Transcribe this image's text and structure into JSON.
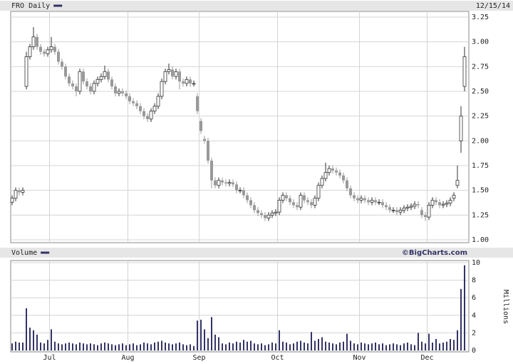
{
  "chart_data": [
    {
      "type": "candlestick",
      "title": "FRO Daily",
      "date": "12/15/14",
      "color": "#333366",
      "up_color": "#ffffff",
      "down_color": "#999999",
      "grid": true,
      "ylim": [
        1,
        3.25
      ],
      "yticks": [
        {
          "value": 1,
          "label": "1.00"
        },
        1.25,
        {
          "value": 1.5,
          "label": "1.50"
        },
        1.75,
        {
          "value": 2,
          "label": "2.00"
        },
        2.25,
        {
          "value": 2.5,
          "label": "2.50"
        },
        2.75,
        {
          "value": 3,
          "label": "3.00"
        },
        3.25
      ],
      "ohlc": [
        [
          1.38,
          1.45,
          1.35,
          1.42
        ],
        [
          1.42,
          1.53,
          1.39,
          1.5
        ],
        [
          1.5,
          1.53,
          1.45,
          1.48
        ],
        [
          1.48,
          1.53,
          1.45,
          1.5
        ],
        [
          2.55,
          2.9,
          2.52,
          2.85
        ],
        [
          2.85,
          2.98,
          2.82,
          2.95
        ],
        [
          2.95,
          3.15,
          2.92,
          3.05
        ],
        [
          3.05,
          3.08,
          2.92,
          2.95
        ],
        [
          2.95,
          2.98,
          2.87,
          2.9
        ],
        [
          2.9,
          2.93,
          2.85,
          2.88
        ],
        [
          2.88,
          2.95,
          2.85,
          2.92
        ],
        [
          2.92,
          3.05,
          2.89,
          2.95
        ],
        [
          2.95,
          2.98,
          2.87,
          2.9
        ],
        [
          2.9,
          2.93,
          2.77,
          2.8
        ],
        [
          2.8,
          2.83,
          2.72,
          2.75
        ],
        [
          2.75,
          2.78,
          2.62,
          2.65
        ],
        [
          2.65,
          2.68,
          2.55,
          2.58
        ],
        [
          2.58,
          2.61,
          2.52,
          2.55
        ],
        [
          2.55,
          2.58,
          2.45,
          2.5
        ],
        [
          2.5,
          2.73,
          2.47,
          2.7
        ],
        [
          2.7,
          2.73,
          2.57,
          2.6
        ],
        [
          2.6,
          2.63,
          2.52,
          2.55
        ],
        [
          2.55,
          2.58,
          2.47,
          2.5
        ],
        [
          2.5,
          2.61,
          2.47,
          2.58
        ],
        [
          2.58,
          2.65,
          2.55,
          2.62
        ],
        [
          2.62,
          2.68,
          2.59,
          2.65
        ],
        [
          2.65,
          2.76,
          2.62,
          2.7
        ],
        [
          2.7,
          2.73,
          2.59,
          2.62
        ],
        [
          2.62,
          2.65,
          2.52,
          2.55
        ],
        [
          2.55,
          2.58,
          2.45,
          2.48
        ],
        [
          2.48,
          2.53,
          2.45,
          2.5
        ],
        [
          2.5,
          2.53,
          2.45,
          2.48
        ],
        [
          2.48,
          2.51,
          2.42,
          2.45
        ],
        [
          2.45,
          2.48,
          2.37,
          2.4
        ],
        [
          2.4,
          2.43,
          2.35,
          2.38
        ],
        [
          2.38,
          2.41,
          2.32,
          2.35
        ],
        [
          2.35,
          2.38,
          2.27,
          2.3
        ],
        [
          2.3,
          2.33,
          2.22,
          2.25
        ],
        [
          2.25,
          2.28,
          2.19,
          2.22
        ],
        [
          2.22,
          2.33,
          2.19,
          2.3
        ],
        [
          2.3,
          2.38,
          2.27,
          2.35
        ],
        [
          2.35,
          2.48,
          2.32,
          2.45
        ],
        [
          2.45,
          2.63,
          2.42,
          2.6
        ],
        [
          2.6,
          2.73,
          2.57,
          2.7
        ],
        [
          2.7,
          2.78,
          2.67,
          2.72
        ],
        [
          2.72,
          2.75,
          2.62,
          2.65
        ],
        [
          2.65,
          2.73,
          2.62,
          2.7
        ],
        [
          2.7,
          2.73,
          2.52,
          2.6
        ],
        [
          2.6,
          2.63,
          2.55,
          2.58
        ],
        [
          2.58,
          2.65,
          2.55,
          2.62
        ],
        [
          2.62,
          2.65,
          2.55,
          2.58
        ],
        [
          2.58,
          2.61,
          2.55,
          2.58
        ],
        [
          2.45,
          2.48,
          2.27,
          2.3
        ],
        [
          2.2,
          2.23,
          2.07,
          2.1
        ],
        [
          2.02,
          2.05,
          1.97,
          2.0
        ],
        [
          2.0,
          2.03,
          1.77,
          1.8
        ],
        [
          1.8,
          1.83,
          1.52,
          1.6
        ],
        [
          1.6,
          1.63,
          1.52,
          1.55
        ],
        [
          1.55,
          1.63,
          1.52,
          1.6
        ],
        [
          1.6,
          1.63,
          1.55,
          1.58
        ],
        [
          1.58,
          1.61,
          1.54,
          1.57
        ],
        [
          1.57,
          1.61,
          1.54,
          1.58
        ],
        [
          1.58,
          1.61,
          1.53,
          1.56
        ],
        [
          1.56,
          1.59,
          1.47,
          1.5
        ],
        [
          1.5,
          1.53,
          1.47,
          1.5
        ],
        [
          1.5,
          1.53,
          1.42,
          1.45
        ],
        [
          1.45,
          1.48,
          1.37,
          1.4
        ],
        [
          1.4,
          1.43,
          1.32,
          1.35
        ],
        [
          1.35,
          1.38,
          1.27,
          1.3
        ],
        [
          1.3,
          1.33,
          1.24,
          1.27
        ],
        [
          1.27,
          1.3,
          1.22,
          1.25
        ],
        [
          1.25,
          1.28,
          1.19,
          1.22
        ],
        [
          1.22,
          1.28,
          1.19,
          1.25
        ],
        [
          1.25,
          1.3,
          1.22,
          1.27
        ],
        [
          1.27,
          1.31,
          1.24,
          1.28
        ],
        [
          1.28,
          1.43,
          1.25,
          1.4
        ],
        [
          1.4,
          1.48,
          1.37,
          1.45
        ],
        [
          1.45,
          1.48,
          1.39,
          1.42
        ],
        [
          1.42,
          1.45,
          1.35,
          1.38
        ],
        [
          1.38,
          1.41,
          1.32,
          1.35
        ],
        [
          1.35,
          1.38,
          1.3,
          1.33
        ],
        [
          1.33,
          1.48,
          1.3,
          1.45
        ],
        [
          1.45,
          1.48,
          1.37,
          1.4
        ],
        [
          1.4,
          1.43,
          1.35,
          1.38
        ],
        [
          1.38,
          1.41,
          1.32,
          1.35
        ],
        [
          1.35,
          1.45,
          1.32,
          1.42
        ],
        [
          1.42,
          1.58,
          1.39,
          1.55
        ],
        [
          1.55,
          1.65,
          1.52,
          1.62
        ],
        [
          1.62,
          1.78,
          1.59,
          1.68
        ],
        [
          1.68,
          1.75,
          1.65,
          1.72
        ],
        [
          1.72,
          1.75,
          1.67,
          1.7
        ],
        [
          1.7,
          1.73,
          1.65,
          1.68
        ],
        [
          1.68,
          1.71,
          1.62,
          1.65
        ],
        [
          1.65,
          1.68,
          1.57,
          1.6
        ],
        [
          1.6,
          1.63,
          1.49,
          1.52
        ],
        [
          1.52,
          1.55,
          1.42,
          1.45
        ],
        [
          1.45,
          1.48,
          1.39,
          1.42
        ],
        [
          1.42,
          1.45,
          1.37,
          1.4
        ],
        [
          1.4,
          1.45,
          1.37,
          1.42
        ],
        [
          1.42,
          1.45,
          1.37,
          1.4
        ],
        [
          1.4,
          1.43,
          1.35,
          1.38
        ],
        [
          1.38,
          1.43,
          1.35,
          1.4
        ],
        [
          1.4,
          1.43,
          1.35,
          1.38
        ],
        [
          1.38,
          1.41,
          1.35,
          1.38
        ],
        [
          1.38,
          1.41,
          1.32,
          1.35
        ],
        [
          1.35,
          1.38,
          1.3,
          1.33
        ],
        [
          1.33,
          1.36,
          1.27,
          1.3
        ],
        [
          1.3,
          1.33,
          1.27,
          1.3
        ],
        [
          1.3,
          1.33,
          1.25,
          1.28
        ],
        [
          1.28,
          1.33,
          1.25,
          1.3
        ],
        [
          1.3,
          1.35,
          1.27,
          1.32
        ],
        [
          1.32,
          1.36,
          1.29,
          1.33
        ],
        [
          1.33,
          1.37,
          1.3,
          1.34
        ],
        [
          1.34,
          1.39,
          1.31,
          1.36
        ],
        [
          1.36,
          1.39,
          1.32,
          1.35
        ],
        [
          1.3,
          1.33,
          1.22,
          1.25
        ],
        [
          1.25,
          1.28,
          1.19,
          1.23
        ],
        [
          1.23,
          1.38,
          1.2,
          1.35
        ],
        [
          1.35,
          1.43,
          1.32,
          1.4
        ],
        [
          1.4,
          1.43,
          1.35,
          1.38
        ],
        [
          1.38,
          1.41,
          1.32,
          1.35
        ],
        [
          1.35,
          1.39,
          1.32,
          1.36
        ],
        [
          1.36,
          1.4,
          1.33,
          1.37
        ],
        [
          1.37,
          1.43,
          1.34,
          1.4
        ],
        [
          1.42,
          1.48,
          1.39,
          1.45
        ],
        [
          1.55,
          1.75,
          1.52,
          1.6
        ],
        [
          2.0,
          2.35,
          1.88,
          2.25
        ],
        [
          2.55,
          2.95,
          2.5,
          2.85
        ]
      ]
    },
    {
      "type": "bar",
      "title": "Volume",
      "source": "©BigCharts.com",
      "ylabel": "Millions",
      "color": "#333366",
      "grid": true,
      "ylim": [
        0,
        10
      ],
      "yticks": [
        0,
        2,
        4,
        6,
        8,
        10
      ],
      "categories": [
        null,
        null,
        null,
        null,
        null,
        null,
        null,
        null,
        null,
        null,
        null,
        "Jul",
        null,
        null,
        null,
        null,
        null,
        null,
        null,
        null,
        null,
        null,
        null,
        null,
        null,
        null,
        null,
        null,
        null,
        null,
        null,
        null,
        null,
        "Aug",
        null,
        null,
        null,
        null,
        null,
        null,
        null,
        null,
        null,
        null,
        null,
        null,
        null,
        null,
        null,
        null,
        null,
        null,
        null,
        "Sep",
        null,
        null,
        null,
        null,
        null,
        null,
        null,
        null,
        null,
        null,
        null,
        null,
        null,
        null,
        null,
        null,
        null,
        null,
        null,
        null,
        null,
        "Oct",
        null,
        null,
        null,
        null,
        null,
        null,
        null,
        null,
        null,
        null,
        null,
        null,
        null,
        null,
        null,
        null,
        null,
        null,
        null,
        null,
        null,
        null,
        "Nov",
        null,
        null,
        null,
        null,
        null,
        null,
        null,
        null,
        null,
        null,
        null,
        null,
        null,
        null,
        null,
        null,
        null,
        null,
        "Dec",
        null,
        null,
        null,
        null,
        null,
        null,
        null,
        null,
        null,
        null
      ],
      "values": [
        0.8,
        1.0,
        0.9,
        0.9,
        4.8,
        2.6,
        2.3,
        1.8,
        0.9,
        0.8,
        1.2,
        2.4,
        1.0,
        0.8,
        0.7,
        0.8,
        0.9,
        0.8,
        0.7,
        0.9,
        0.8,
        0.7,
        0.8,
        0.7,
        0.6,
        0.8,
        0.9,
        0.8,
        0.7,
        0.6,
        0.7,
        0.8,
        0.6,
        0.7,
        0.8,
        0.6,
        0.7,
        0.9,
        0.8,
        0.7,
        0.9,
        1.0,
        1.1,
        0.9,
        0.8,
        0.7,
        0.8,
        0.9,
        0.7,
        0.6,
        0.7,
        0.5,
        3.4,
        3.5,
        2.4,
        1.4,
        3.8,
        1.8,
        1.5,
        0.8,
        0.7,
        0.9,
        0.8,
        1.0,
        0.9,
        1.2,
        1.0,
        1.1,
        0.8,
        0.7,
        0.8,
        0.6,
        0.7,
        0.9,
        0.8,
        2.3,
        1.0,
        0.9,
        0.7,
        0.8,
        1.0,
        1.1,
        0.9,
        0.8,
        2.1,
        1.1,
        1.3,
        1.5,
        1.0,
        0.9,
        0.8,
        0.7,
        0.9,
        1.0,
        1.9,
        1.1,
        0.8,
        0.7,
        0.9,
        0.8,
        0.7,
        0.8,
        0.9,
        0.7,
        0.8,
        0.6,
        0.7,
        0.8,
        0.7,
        0.6,
        0.8,
        0.9,
        0.7,
        0.6,
        2.0,
        1.0,
        0.8,
        1.9,
        0.9,
        1.3,
        0.8,
        0.9,
        1.0,
        1.3,
        1.2,
        2.3,
        7.0,
        9.7
      ]
    }
  ]
}
